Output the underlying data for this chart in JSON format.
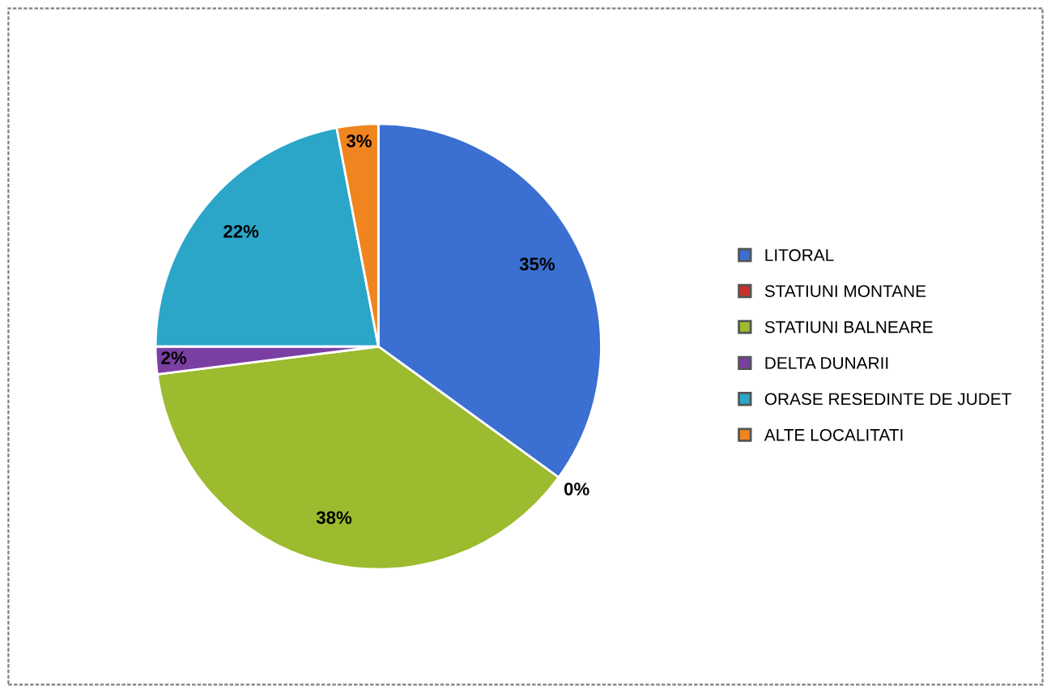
{
  "chart_data": {
    "type": "pie",
    "categories": [
      "LITORAL",
      "STATIUNI MONTANE",
      "STATIUNI BALNEARE",
      "DELTA DUNARII",
      "ORASE RESEDINTE DE JUDET",
      "ALTE LOCALITATI"
    ],
    "values": [
      35,
      0,
      38,
      2,
      22,
      3
    ],
    "value_labels": [
      "35%",
      "0%",
      "38%",
      "2%",
      "22%",
      "3%"
    ],
    "colors": [
      "#3b6fd1",
      "#c8302c",
      "#9cbb2e",
      "#7b3fa3",
      "#2ba6c9",
      "#f0841f"
    ],
    "legend": "right"
  }
}
